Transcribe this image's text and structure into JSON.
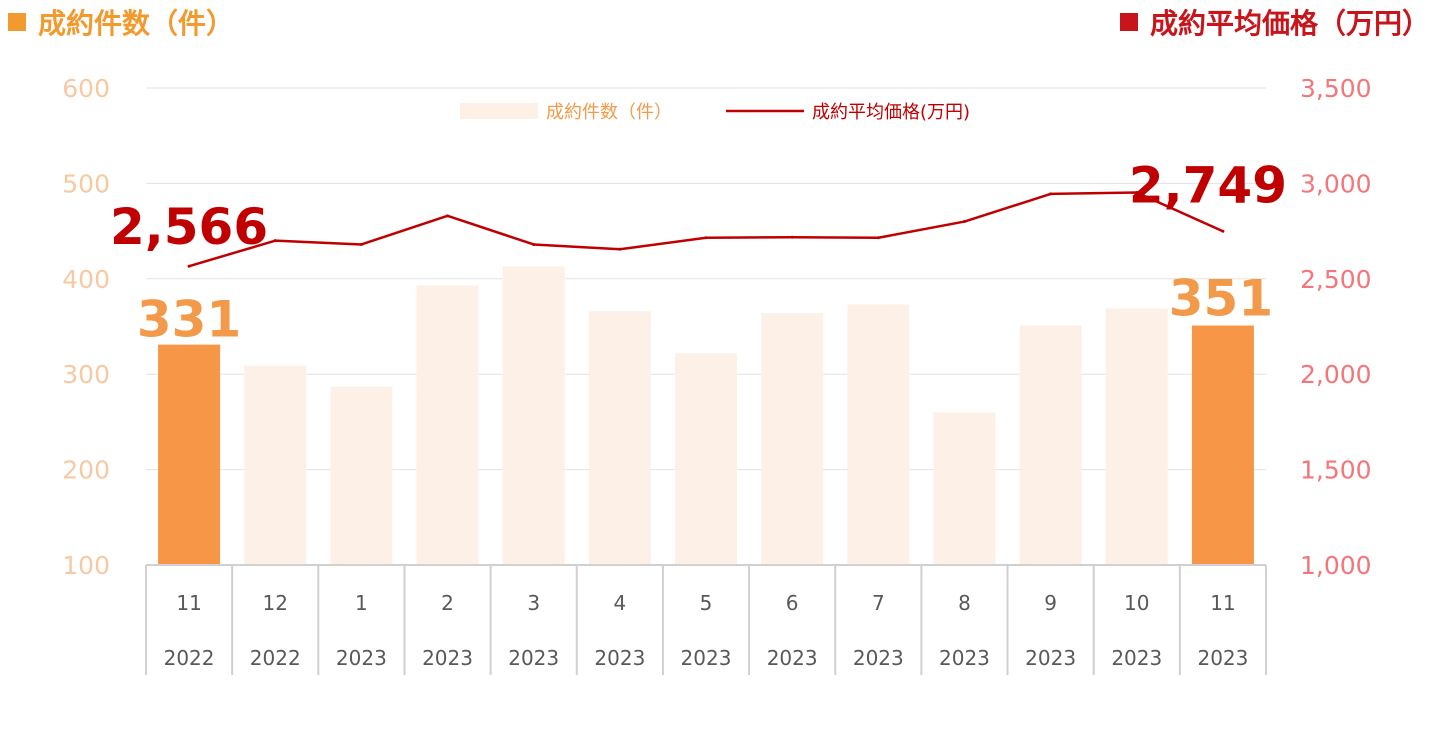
{
  "header": {
    "left_title": "成約件数（件）",
    "right_title": "成約平均価格（万円）",
    "left_color": "#f29a2e",
    "right_color": "#c8151b"
  },
  "chart_data": {
    "type": "bar+line",
    "categories": [
      {
        "month": "11",
        "year": "2022"
      },
      {
        "month": "12",
        "year": "2022"
      },
      {
        "month": "1",
        "year": "2023"
      },
      {
        "month": "2",
        "year": "2023"
      },
      {
        "month": "3",
        "year": "2023"
      },
      {
        "month": "4",
        "year": "2023"
      },
      {
        "month": "5",
        "year": "2023"
      },
      {
        "month": "6",
        "year": "2023"
      },
      {
        "month": "7",
        "year": "2023"
      },
      {
        "month": "8",
        "year": "2023"
      },
      {
        "month": "9",
        "year": "2023"
      },
      {
        "month": "10",
        "year": "2023"
      },
      {
        "month": "11",
        "year": "2023"
      }
    ],
    "series": [
      {
        "name": "成約件数(件)",
        "type": "bar",
        "axis": "left",
        "values": [
          331,
          309,
          287,
          393,
          413,
          366,
          322,
          364,
          373,
          260,
          351,
          369,
          351
        ],
        "highlight": [
          0,
          12
        ],
        "color": "#fdf1e7",
        "highlight_color": "#f79646"
      },
      {
        "name": "成約平均価格(万円)",
        "type": "line",
        "axis": "right",
        "values": [
          2566,
          2700,
          2680,
          2830,
          2680,
          2655,
          2715,
          2718,
          2715,
          2800,
          2945,
          2952,
          2749
        ],
        "color": "#c00000"
      }
    ],
    "y_left": {
      "min": 100,
      "max": 600,
      "ticks": [
        "100",
        "200",
        "300",
        "400",
        "500",
        "600"
      ]
    },
    "y_right": {
      "min": 1000,
      "max": 3500,
      "ticks": [
        "1,000",
        "1,500",
        "2,000",
        "2,500",
        "3,000",
        "3,500"
      ]
    },
    "annotations": {
      "bar_first": "331",
      "bar_last": "351",
      "line_first": "2,566",
      "line_last": "2,749"
    },
    "legend": {
      "position": "top-center",
      "bar_label": "成約件数（件）",
      "line_label": "成約平均価格(万円)"
    },
    "grid": true
  }
}
